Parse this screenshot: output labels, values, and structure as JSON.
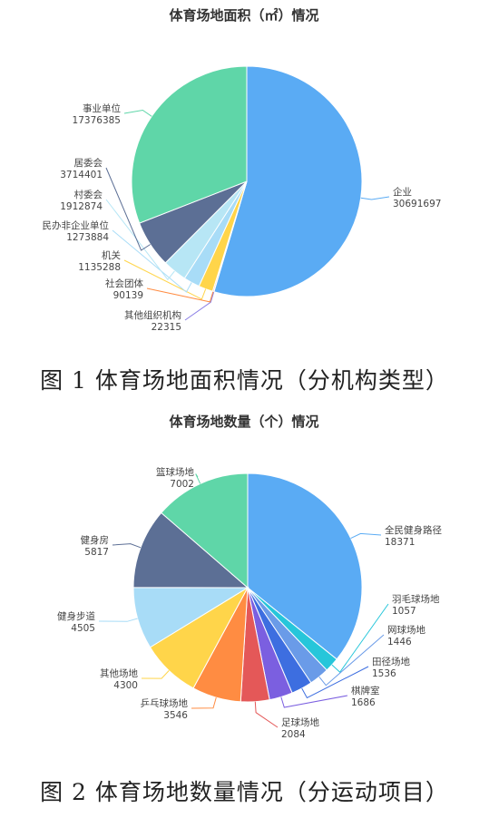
{
  "chart_data": [
    {
      "type": "pie",
      "title": "体育场地面积（㎡）情况",
      "caption": "图 1 体育场地面积情况（分机构类型）",
      "slices": [
        {
          "name": "企业",
          "value": 30691697,
          "color": "#5aabf4"
        },
        {
          "name": "其他组织机构",
          "value": 22315,
          "color": "#8a7ee6"
        },
        {
          "name": "社会团体",
          "value": 90139,
          "color": "#ff8c42"
        },
        {
          "name": "机关",
          "value": 1135288,
          "color": "#ffd54a"
        },
        {
          "name": "民办非企业单位",
          "value": 1273884,
          "color": "#a8dcf7"
        },
        {
          "name": "村委会",
          "value": 1912874,
          "color": "#b7e6f5"
        },
        {
          "name": "居委会",
          "value": 3714401,
          "color": "#5c6f95"
        },
        {
          "name": "事业单位",
          "value": 17376385,
          "color": "#5fd6a8"
        }
      ]
    },
    {
      "type": "pie",
      "title": "体育场地数量（个）情况",
      "caption": "图 2 体育场地数量情况（分运动项目）",
      "slices": [
        {
          "name": "全民健身路径",
          "value": 18371,
          "color": "#5aabf4"
        },
        {
          "name": "羽毛球场地",
          "value": 1057,
          "color": "#26c6da"
        },
        {
          "name": "网球场地",
          "value": 1446,
          "color": "#6a9be8"
        },
        {
          "name": "田径场地",
          "value": 1536,
          "color": "#3d6ee0"
        },
        {
          "name": "棋牌室",
          "value": 1686,
          "color": "#7b5fe0"
        },
        {
          "name": "足球场地",
          "value": 2084,
          "color": "#e45858"
        },
        {
          "name": "乒乓球场地",
          "value": 3546,
          "color": "#ff8c42"
        },
        {
          "name": "其他场地",
          "value": 4300,
          "color": "#ffd54a"
        },
        {
          "name": "健身步道",
          "value": 4505,
          "color": "#a8dcf7"
        },
        {
          "name": "健身房",
          "value": 5817,
          "color": "#5c6f95"
        },
        {
          "name": "篮球场地",
          "value": 7002,
          "color": "#5fd6a8"
        }
      ]
    }
  ]
}
